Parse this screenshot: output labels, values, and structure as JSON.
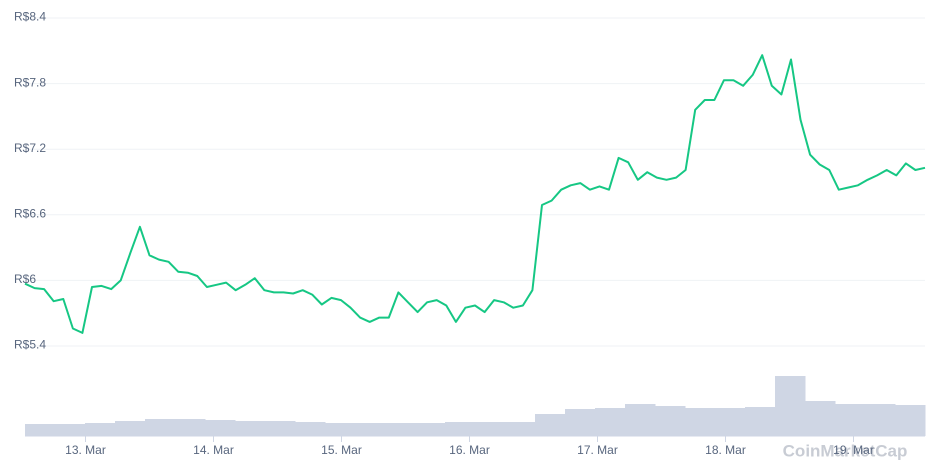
{
  "chart_data": {
    "type": "line",
    "watermark": "CoinMarketCap",
    "xlim": [
      0,
      90
    ],
    "xticks": [
      {
        "value": 6.05,
        "label": "13. Mar"
      },
      {
        "value": 18.85,
        "label": "14. Mar"
      },
      {
        "value": 31.65,
        "label": "15. Mar"
      },
      {
        "value": 44.45,
        "label": "16. Mar"
      },
      {
        "value": 57.25,
        "label": "17. Mar"
      },
      {
        "value": 70.05,
        "label": "18. Mar"
      },
      {
        "value": 82.85,
        "label": "19. Mar"
      }
    ],
    "ylim": [
      5.4,
      8.4
    ],
    "yticks": [
      {
        "value": 5.4,
        "label": "R$5.4"
      },
      {
        "value": 6,
        "label": "R$6"
      },
      {
        "value": 6.6,
        "label": "R$6.6"
      },
      {
        "value": 7.2,
        "label": "R$7.2"
      },
      {
        "value": 7.8,
        "label": "R$7.8"
      },
      {
        "value": 8.4,
        "label": "R$8.4"
      }
    ],
    "grid": true,
    "y2lim": [
      0,
      80
    ],
    "series": [
      {
        "color": "#16c784",
        "values": [
          5.97,
          5.93,
          5.92,
          5.81,
          5.83,
          5.56,
          5.52,
          5.94,
          5.95,
          5.92,
          6.0,
          6.25,
          6.49,
          6.23,
          6.19,
          6.17,
          6.08,
          6.07,
          6.04,
          5.94,
          5.96,
          5.98,
          5.91,
          5.96,
          6.02,
          5.91,
          5.89,
          5.89,
          5.88,
          5.91,
          5.87,
          5.78,
          5.84,
          5.82,
          5.75,
          5.66,
          5.62,
          5.66,
          5.66,
          5.89,
          5.8,
          5.71,
          5.8,
          5.82,
          5.77,
          5.62,
          5.75,
          5.77,
          5.71,
          5.82,
          5.8,
          5.75,
          5.77,
          5.91,
          6.69,
          6.73,
          6.83,
          6.87,
          6.89,
          6.83,
          6.86,
          6.83,
          7.12,
          7.08,
          6.92,
          6.99,
          6.94,
          6.92,
          6.94,
          7.01,
          7.56,
          7.65,
          7.65,
          7.83,
          7.83,
          7.78,
          7.88,
          8.06,
          7.78,
          7.7,
          8.02,
          7.47,
          7.15,
          7.06,
          7.01,
          6.83,
          6.85,
          6.87,
          6.92,
          6.96,
          7.01,
          6.96,
          7.07,
          7.01,
          7.03
        ]
      },
      {
        "color": "#cfd6e4",
        "axis": "y2",
        "values": [
          12,
          12,
          13,
          15,
          17,
          17,
          16,
          15,
          15,
          14,
          13,
          13,
          13,
          13,
          14,
          14,
          14,
          22,
          27,
          28,
          32,
          30,
          28,
          28,
          29,
          60,
          35,
          32,
          32,
          31
        ]
      }
    ]
  }
}
